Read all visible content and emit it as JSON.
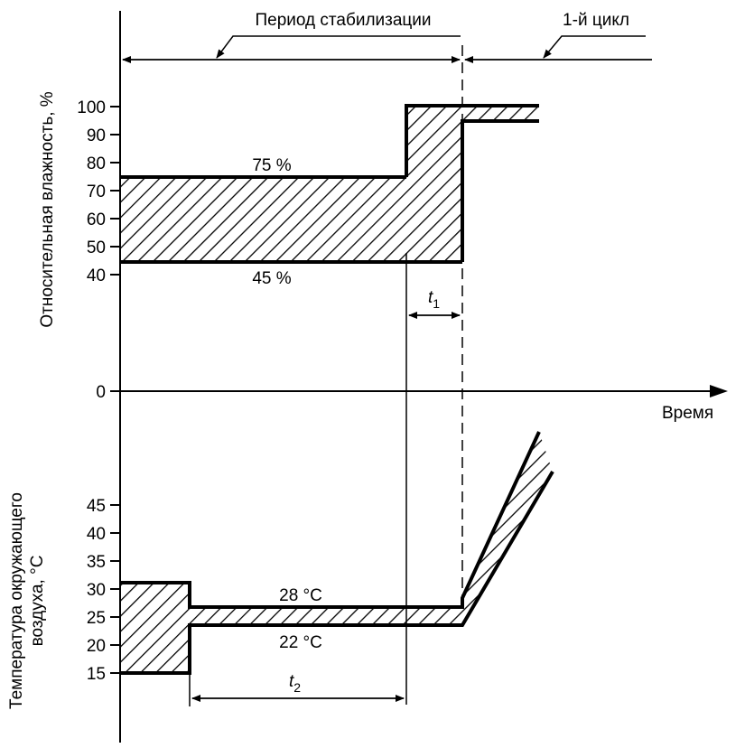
{
  "header": {
    "stabilization_label": "Период стабилизации",
    "cycle_label": "1-й цикл"
  },
  "humidity": {
    "axis_label": "Относительная влажность, %",
    "ticks": [
      "100",
      "90",
      "80",
      "70",
      "60",
      "50",
      "40"
    ],
    "upper_label": "75 %",
    "lower_label": "45 %"
  },
  "origin_label": "0",
  "time_label": "Время",
  "temperature": {
    "axis_label_line1": "Температура окружающего",
    "axis_label_line2": "воздуха, °C",
    "ticks": [
      "45",
      "40",
      "35",
      "30",
      "25",
      "20",
      "15"
    ],
    "upper_label": "28 °C",
    "lower_label": "22 °C"
  },
  "intervals": {
    "t1": "t",
    "t1_sub": "1",
    "t2": "t",
    "t2_sub": "2"
  },
  "colors": {
    "ink": "#000000",
    "background": "#ffffff"
  }
}
